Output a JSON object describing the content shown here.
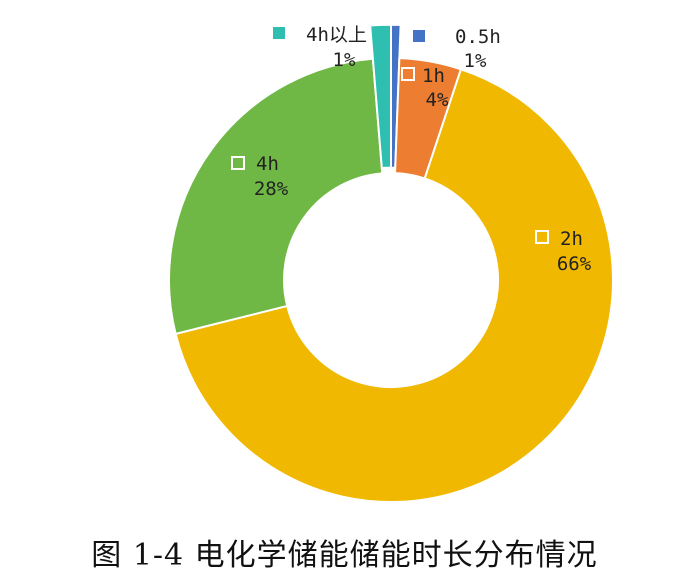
{
  "chart_data": {
    "type": "pie",
    "donut": true,
    "caption": "图 1-4 电化学储能储能时长分布情况",
    "slices": [
      {
        "name": "0.5h",
        "label": "0.5h",
        "percent_label": "1%",
        "value": 0.6,
        "color": "#4472C4"
      },
      {
        "name": "1h",
        "label": "1h",
        "percent_label": "4%",
        "value": 4.5,
        "color": "#ED7D31"
      },
      {
        "name": "2h",
        "label": "2h",
        "percent_label": "66%",
        "value": 66.0,
        "color": "#F0B800"
      },
      {
        "name": "4h",
        "label": "4h",
        "percent_label": "28%",
        "value": 27.6,
        "color": "#70B845"
      },
      {
        "name": "4h以上",
        "label": "4h以上",
        "percent_label": "1%",
        "value": 1.3,
        "color": "#2EBFB0"
      }
    ]
  }
}
